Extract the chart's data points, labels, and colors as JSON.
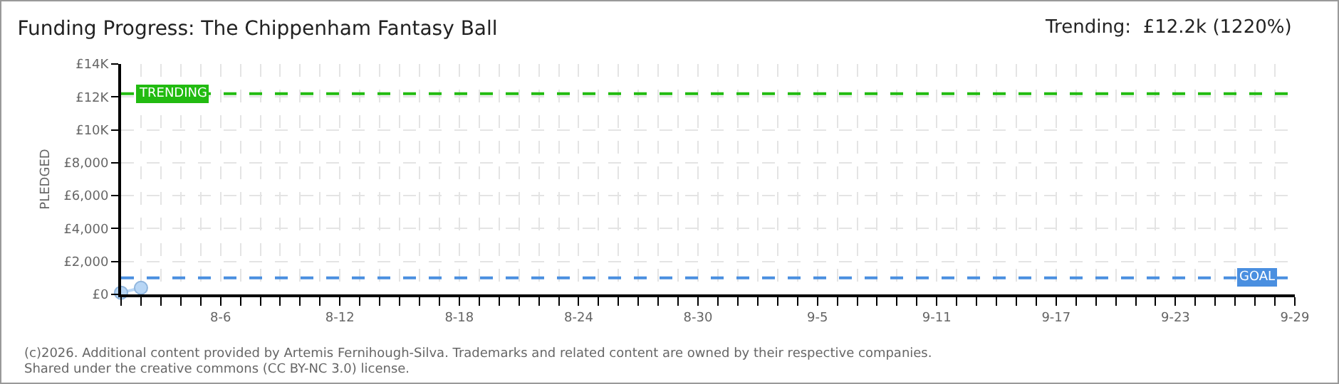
{
  "chart_data": {
    "type": "line",
    "title": "Funding Progress: The Chippenham Fantasy Ball",
    "subtitle": "Trending:  £12.2k (1220%)",
    "ylabel": "PLEDGED",
    "x": [
      "--08-01",
      "--08-02"
    ],
    "series": [
      {
        "color": "#b8d6f5",
        "values": [
          100,
          400
        ]
      }
    ],
    "marker": "circle",
    "line_style": "solid",
    "grid": true,
    "xlim": [
      "--08-01",
      "--09-29"
    ],
    "xticks": [
      {
        "value": "--08-01",
        "label": null
      },
      {
        "value": "--08-02",
        "label": null
      },
      {
        "value": "--08-03",
        "label": null
      },
      {
        "value": "--08-04",
        "label": null
      },
      {
        "value": "--08-05",
        "label": null
      },
      {
        "value": "--08-06",
        "label": "8-6"
      },
      {
        "value": "--08-07",
        "label": null
      },
      {
        "value": "--08-08",
        "label": null
      },
      {
        "value": "--08-09",
        "label": null
      },
      {
        "value": "--08-10",
        "label": null
      },
      {
        "value": "--08-11",
        "label": null
      },
      {
        "value": "--08-12",
        "label": "8-12"
      },
      {
        "value": "--08-13",
        "label": null
      },
      {
        "value": "--08-14",
        "label": null
      },
      {
        "value": "--08-15",
        "label": null
      },
      {
        "value": "--08-16",
        "label": null
      },
      {
        "value": "--08-17",
        "label": null
      },
      {
        "value": "--08-18",
        "label": "8-18"
      },
      {
        "value": "--08-19",
        "label": null
      },
      {
        "value": "--08-20",
        "label": null
      },
      {
        "value": "--08-21",
        "label": null
      },
      {
        "value": "--08-22",
        "label": null
      },
      {
        "value": "--08-23",
        "label": null
      },
      {
        "value": "--08-24",
        "label": "8-24"
      },
      {
        "value": "--08-25",
        "label": null
      },
      {
        "value": "--08-26",
        "label": null
      },
      {
        "value": "--08-27",
        "label": null
      },
      {
        "value": "--08-28",
        "label": null
      },
      {
        "value": "--08-29",
        "label": null
      },
      {
        "value": "--08-30",
        "label": "8-30"
      },
      {
        "value": "--08-31",
        "label": null
      },
      {
        "value": "--09-01",
        "label": null
      },
      {
        "value": "--09-02",
        "label": null
      },
      {
        "value": "--09-03",
        "label": null
      },
      {
        "value": "--09-04",
        "label": null
      },
      {
        "value": "--09-05",
        "label": "9-5"
      },
      {
        "value": "--09-06",
        "label": null
      },
      {
        "value": "--09-07",
        "label": null
      },
      {
        "value": "--09-08",
        "label": null
      },
      {
        "value": "--09-09",
        "label": null
      },
      {
        "value": "--09-10",
        "label": null
      },
      {
        "value": "--09-11",
        "label": "9-11"
      },
      {
        "value": "--09-12",
        "label": null
      },
      {
        "value": "--09-13",
        "label": null
      },
      {
        "value": "--09-14",
        "label": null
      },
      {
        "value": "--09-15",
        "label": null
      },
      {
        "value": "--09-16",
        "label": null
      },
      {
        "value": "--09-17",
        "label": "9-17"
      },
      {
        "value": "--09-18",
        "label": null
      },
      {
        "value": "--09-19",
        "label": null
      },
      {
        "value": "--09-20",
        "label": null
      },
      {
        "value": "--09-21",
        "label": null
      },
      {
        "value": "--09-22",
        "label": null
      },
      {
        "value": "--09-23",
        "label": "9-23"
      },
      {
        "value": "--09-24",
        "label": null
      },
      {
        "value": "--09-25",
        "label": null
      },
      {
        "value": "--09-26",
        "label": null
      },
      {
        "value": "--09-27",
        "label": null
      },
      {
        "value": "--09-28",
        "label": null
      },
      {
        "value": "--09-29",
        "label": "9-29"
      }
    ],
    "ylim": [
      0,
      14000
    ],
    "yticks": [
      {
        "value": 0,
        "label": "£0"
      },
      {
        "value": 2000,
        "label": "£2,000"
      },
      {
        "value": 4000,
        "label": "£4,000"
      },
      {
        "value": 6000,
        "label": "£6,000"
      },
      {
        "value": 8000,
        "label": "£8,000"
      },
      {
        "value": 10000,
        "label": "£10K"
      },
      {
        "value": 12000,
        "label": "£12K"
      },
      {
        "value": 14000,
        "label": "£14K"
      }
    ],
    "ref_lines": [
      {
        "axis": "y",
        "value": 12200,
        "label": "TRENDING",
        "color": "#22bb11",
        "line_style": "dashed"
      },
      {
        "axis": "y",
        "value": 1000,
        "label": "GOAL",
        "color": "#4a8fe0",
        "line_style": "dashed"
      }
    ],
    "annotations": [
      "(c)2026. Additional content provided by Artemis Fernihough-Silva. Trademarks and related content are owned by their respective companies.",
      "Shared under the creative commons (CC BY-NC 3.0) license."
    ]
  }
}
